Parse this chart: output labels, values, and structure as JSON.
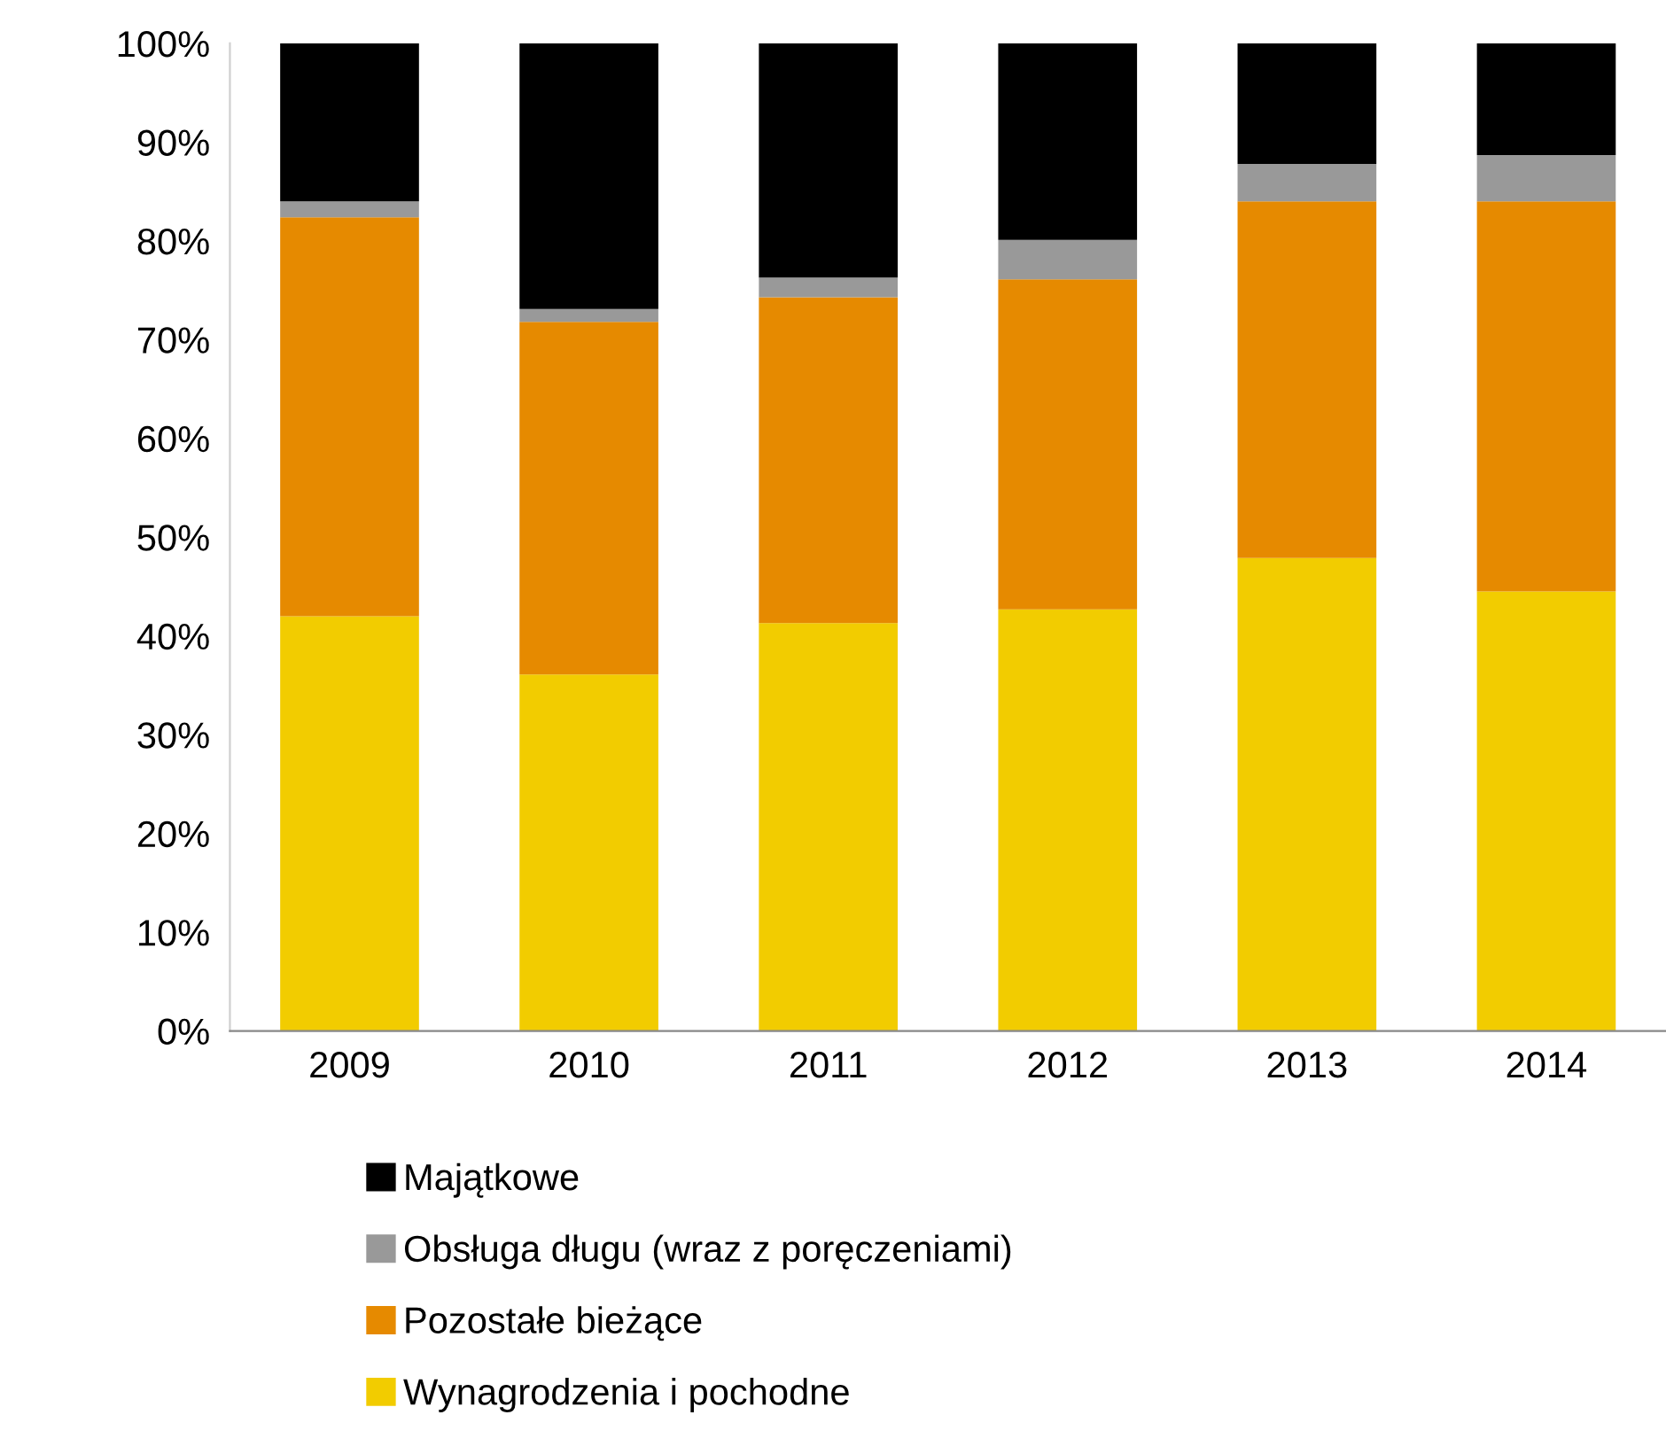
{
  "chart_data": {
    "type": "bar",
    "stacked": true,
    "categories": [
      "2009",
      "2010",
      "2011",
      "2012",
      "2013",
      "2014"
    ],
    "series": [
      {
        "name": "Wynagrodzenia i pochodne",
        "color": "#f2cc00",
        "values": [
          42.0,
          36.1,
          41.3,
          42.7,
          47.9,
          44.5
        ]
      },
      {
        "name": "Pozostałe bieżące",
        "color": "#e68a00",
        "values": [
          40.4,
          35.7,
          33.0,
          33.4,
          36.1,
          39.5
        ]
      },
      {
        "name": "Obsługa długu (wraz z poręczeniami)",
        "color": "#999999",
        "values": [
          1.6,
          1.3,
          2.0,
          4.0,
          3.8,
          4.7
        ]
      },
      {
        "name": "Majątkowe",
        "color": "#000000",
        "values": [
          16.0,
          26.9,
          23.7,
          19.9,
          12.2,
          11.3
        ]
      }
    ],
    "ylim": [
      0,
      100
    ],
    "yticks": [
      {
        "value": 0,
        "label": "0%"
      },
      {
        "value": 10,
        "label": "10%"
      },
      {
        "value": 20,
        "label": "20%"
      },
      {
        "value": 30,
        "label": "30%"
      },
      {
        "value": 40,
        "label": "40%"
      },
      {
        "value": 50,
        "label": "50%"
      },
      {
        "value": 60,
        "label": "60%"
      },
      {
        "value": 70,
        "label": "70%"
      },
      {
        "value": 80,
        "label": "80%"
      },
      {
        "value": 90,
        "label": "90%"
      },
      {
        "value": 100,
        "label": "100%"
      }
    ],
    "legend": "bottom"
  }
}
